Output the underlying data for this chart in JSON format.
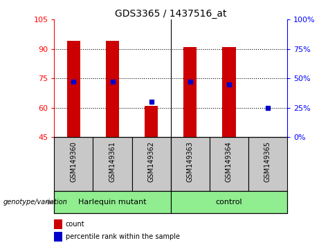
{
  "title": "GDS3365 / 1437516_at",
  "samples": [
    "GSM149360",
    "GSM149361",
    "GSM149362",
    "GSM149363",
    "GSM149364",
    "GSM149365"
  ],
  "count_values": [
    94,
    94,
    61,
    91,
    91,
    45
  ],
  "percentile_values": [
    47,
    47,
    30,
    47,
    45,
    25
  ],
  "ylim_left": [
    45,
    105
  ],
  "ylim_right": [
    0,
    100
  ],
  "yticks_left": [
    45,
    60,
    75,
    90,
    105
  ],
  "yticks_right": [
    0,
    25,
    50,
    75,
    100
  ],
  "bar_color": "#cc0000",
  "dot_color": "#0000cc",
  "bar_width": 0.35,
  "group_label": "genotype/variation",
  "group1_label": "Harlequin mutant",
  "group2_label": "control",
  "group_color": "#90ee90",
  "xlabels_bg": "#c8c8c8",
  "legend_count_label": "count",
  "legend_percentile_label": "percentile rank within the sample"
}
